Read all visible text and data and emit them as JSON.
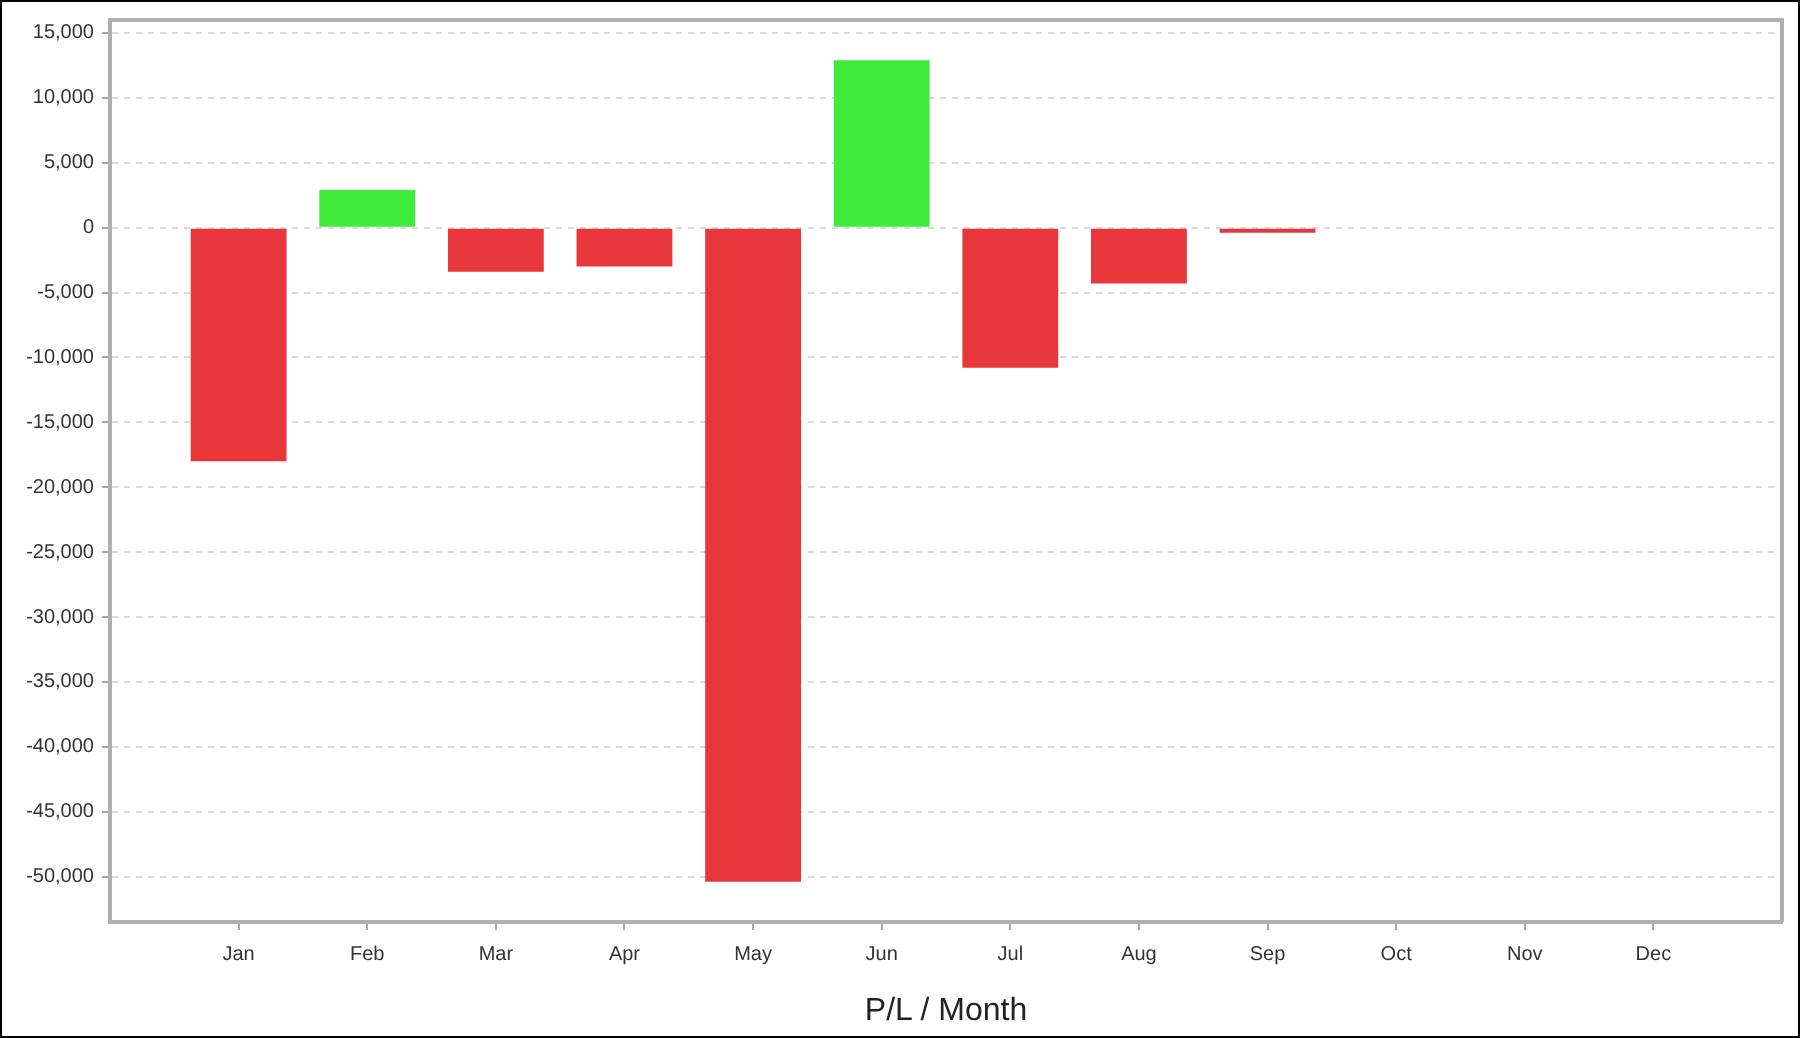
{
  "chart_data": {
    "type": "bar",
    "xlabel": "P/L / Month",
    "categories": [
      "Jan",
      "Feb",
      "Mar",
      "Apr",
      "May",
      "Jun",
      "Jul",
      "Aug",
      "Sep",
      "Oct",
      "Nov",
      "Dec"
    ],
    "values": [
      -18000,
      2900,
      -3400,
      -3000,
      -50400,
      12900,
      -10800,
      -4300,
      -400,
      null,
      null,
      null
    ],
    "colors": [
      "#e8373a",
      "#3eea3a",
      "#e8373a",
      "#e8373a",
      "#e8373a",
      "#3eea3a",
      "#e8373a",
      "#e8373a",
      "#e8373a",
      null,
      null,
      null
    ],
    "ylim": [
      -53500,
      16000
    ],
    "yticks": [
      {
        "value": 15000,
        "label": "15,000"
      },
      {
        "value": 10000,
        "label": "10,000"
      },
      {
        "value": 5000,
        "label": "5,000"
      },
      0,
      {
        "value": -5000,
        "label": "-5,000"
      },
      {
        "value": -10000,
        "label": "-10,000"
      },
      {
        "value": -15000,
        "label": "-15,000"
      },
      {
        "value": -20000,
        "label": "-20,000"
      },
      {
        "value": -25000,
        "label": "-25,000"
      },
      {
        "value": -30000,
        "label": "-30,000"
      },
      {
        "value": -35000,
        "label": "-35,000"
      },
      {
        "value": -40000,
        "label": "-40,000"
      },
      {
        "value": -45000,
        "label": "-45,000"
      },
      {
        "value": -50000,
        "label": "-50,000"
      }
    ],
    "grid": "y"
  }
}
